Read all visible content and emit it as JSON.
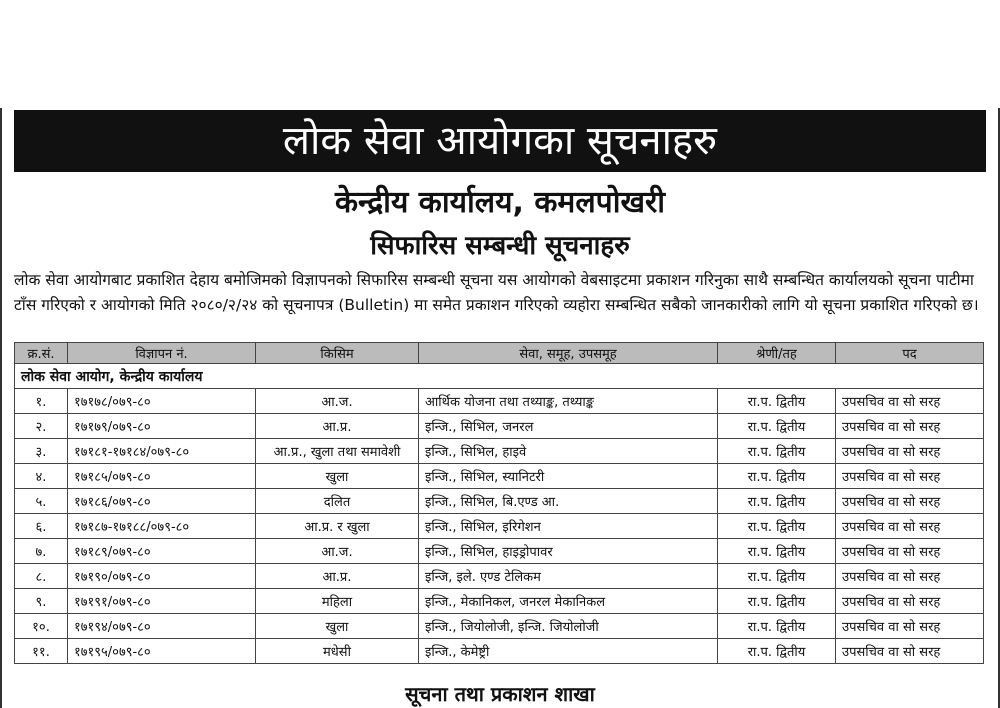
{
  "banner": "लोक सेवा आयोगका सूचनाहरु",
  "office": "केन्द्रीय कार्यालय, कमलपोखरी",
  "heading": "सिफारिस सम्बन्धी सूचनाहरु",
  "paragraph": "लोक सेवा आयोगबाट प्रकाशित देहाय बमोजिमको विज्ञापनको सिफारिस सम्बन्धी सूचना यस आयोगको वेबसाइटमा प्रकाशन गरिनुका साथै सम्बन्धित कार्यालयको सूचना पाटीमा टाँस गरिएको र आयोगको मिति २०८०/२/२४ को सूचनापत्र (Bulletin) मा समेत प्रकाशन गरिएको व्यहोरा सम्बन्धित सबैको जानकारीको लागि यो सूचना प्रकाशित गरिएको छ।",
  "table": {
    "headers": [
      "क्र.सं.",
      "विज्ञापन नं.",
      "किसिम",
      "सेवा, समूह, उपसमूह",
      "श्रेणी/तह",
      "पद"
    ],
    "group": "लोक सेवा आयोग, केन्द्रीय कार्यालय",
    "rows": [
      [
        "१.",
        "१७१७८/०७९-८०",
        "आ.ज.",
        "आर्थिक योजना तथा तथ्याङ्क, तथ्याङ्क",
        "रा.प. द्वितीय",
        "उपसचिव वा सो सरह"
      ],
      [
        "२.",
        "१७१७९/०७९-८०",
        "आ.प्र.",
        "इन्जि., सिभिल, जनरल",
        "रा.प. द्वितीय",
        "उपसचिव वा सो सरह"
      ],
      [
        "३.",
        "१७१८१-१७१८४/०७९-८०",
        "आ.प्र., खुला तथा समावेशी",
        "इन्जि., सिभिल, हाइवे",
        "रा.प. द्वितीय",
        "उपसचिव वा सो सरह"
      ],
      [
        "४.",
        "१७१८५/०७९-८०",
        "खुला",
        "इन्जि., सिभिल, स्यानिटरी",
        "रा.प. द्वितीय",
        "उपसचिव वा सो सरह"
      ],
      [
        "५.",
        "१७१८६/०७९-८०",
        "दलित",
        "इन्जि., सिभिल, बि.एण्ड आ.",
        "रा.प. द्वितीय",
        "उपसचिव वा सो सरह"
      ],
      [
        "६.",
        "१७१८७-१७१८८/०७९-८०",
        "आ.प्र. र खुला",
        "इन्जि., सिभिल, इरिगेशन",
        "रा.प. द्वितीय",
        "उपसचिव वा सो सरह"
      ],
      [
        "७.",
        "१७१८९/०७९-८०",
        "आ.ज.",
        "इन्जि., सिभिल, हाइड्रोपावर",
        "रा.प. द्वितीय",
        "उपसचिव वा सो सरह"
      ],
      [
        "८.",
        "१७१९०/०७९-८०",
        "आ.प्र.",
        "इन्जि, इले. एण्ड टेलिकम",
        "रा.प. द्वितीय",
        "उपसचिव वा सो सरह"
      ],
      [
        "९.",
        "१७१९१/०७९-८०",
        "महिला",
        "इन्जि., मेकानिकल, जनरल मेकानिकल",
        "रा.प. द्वितीय",
        "उपसचिव वा सो सरह"
      ],
      [
        "१०.",
        "१७१९४/०७९-८०",
        "खुला",
        "इन्जि., जियोलोजी, इन्जि. जियोलोजी",
        "रा.प. द्वितीय",
        "उपसचिव वा सो सरह"
      ],
      [
        "११.",
        "१७१९५/०७९-८०",
        "मधेसी",
        "इन्जि., केमेष्ट्री",
        "रा.प. द्वितीय",
        "उपसचिव वा सो सरह"
      ]
    ]
  },
  "footer": "सूचना तथा प्रकाशन शाखा"
}
